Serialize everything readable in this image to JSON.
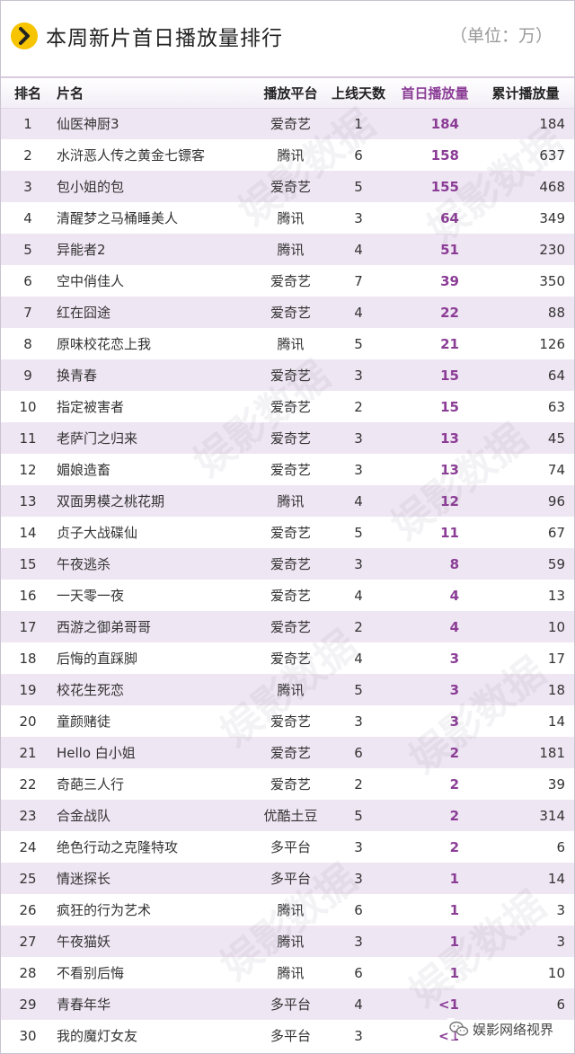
{
  "header": {
    "title": "本周新片首日播放量排行",
    "unit": "（单位：万）",
    "icon": "chevron-right-icon",
    "accent_color": "#f6c400"
  },
  "table": {
    "columns": [
      "排名",
      "片名",
      "播放平台",
      "上线天数",
      "首日播放量",
      "累计播放量"
    ],
    "highlight_color": "#8b3d96",
    "rows": [
      {
        "rank": "1",
        "title": "仙医神厨3",
        "platform": "爱奇艺",
        "days": "1",
        "first_day": "184",
        "total": "184"
      },
      {
        "rank": "2",
        "title": "水浒恶人传之黄金七镖客",
        "platform": "腾讯",
        "days": "6",
        "first_day": "158",
        "total": "637"
      },
      {
        "rank": "3",
        "title": "包小姐的包",
        "platform": "爱奇艺",
        "days": "5",
        "first_day": "155",
        "total": "468"
      },
      {
        "rank": "4",
        "title": "清醒梦之马桶睡美人",
        "platform": "腾讯",
        "days": "3",
        "first_day": "64",
        "total": "349"
      },
      {
        "rank": "5",
        "title": "异能者2",
        "platform": "腾讯",
        "days": "4",
        "first_day": "51",
        "total": "230"
      },
      {
        "rank": "6",
        "title": "空中俏佳人",
        "platform": "爱奇艺",
        "days": "7",
        "first_day": "39",
        "total": "350"
      },
      {
        "rank": "7",
        "title": "红在囧途",
        "platform": "爱奇艺",
        "days": "4",
        "first_day": "22",
        "total": "88"
      },
      {
        "rank": "8",
        "title": "原味校花恋上我",
        "platform": "腾讯",
        "days": "5",
        "first_day": "21",
        "total": "126"
      },
      {
        "rank": "9",
        "title": "换青春",
        "platform": "爱奇艺",
        "days": "3",
        "first_day": "15",
        "total": "64"
      },
      {
        "rank": "10",
        "title": "指定被害者",
        "platform": "爱奇艺",
        "days": "2",
        "first_day": "15",
        "total": "63"
      },
      {
        "rank": "11",
        "title": "老萨门之归来",
        "platform": "爱奇艺",
        "days": "3",
        "first_day": "13",
        "total": "45"
      },
      {
        "rank": "12",
        "title": "媚娘造畜",
        "platform": "爱奇艺",
        "days": "3",
        "first_day": "13",
        "total": "74"
      },
      {
        "rank": "13",
        "title": "双面男模之桃花期",
        "platform": "腾讯",
        "days": "4",
        "first_day": "12",
        "total": "96"
      },
      {
        "rank": "14",
        "title": "贞子大战碟仙",
        "platform": "爱奇艺",
        "days": "5",
        "first_day": "11",
        "total": "67"
      },
      {
        "rank": "15",
        "title": "午夜逃杀",
        "platform": "爱奇艺",
        "days": "3",
        "first_day": "8",
        "total": "59"
      },
      {
        "rank": "16",
        "title": "一天零一夜",
        "platform": "爱奇艺",
        "days": "4",
        "first_day": "4",
        "total": "13"
      },
      {
        "rank": "17",
        "title": "西游之御弟哥哥",
        "platform": "爱奇艺",
        "days": "2",
        "first_day": "4",
        "total": "10"
      },
      {
        "rank": "18",
        "title": "后悔的直踩脚",
        "platform": "爱奇艺",
        "days": "4",
        "first_day": "3",
        "total": "17"
      },
      {
        "rank": "19",
        "title": "校花生死恋",
        "platform": "腾讯",
        "days": "5",
        "first_day": "3",
        "total": "18"
      },
      {
        "rank": "20",
        "title": "童颜赌徒",
        "platform": "爱奇艺",
        "days": "3",
        "first_day": "3",
        "total": "14"
      },
      {
        "rank": "21",
        "title": "Hello 白小姐",
        "platform": "爱奇艺",
        "days": "6",
        "first_day": "2",
        "total": "181"
      },
      {
        "rank": "22",
        "title": "奇葩三人行",
        "platform": "爱奇艺",
        "days": "2",
        "first_day": "2",
        "total": "39"
      },
      {
        "rank": "23",
        "title": "合金战队",
        "platform": "优酷土豆",
        "days": "5",
        "first_day": "2",
        "total": "314"
      },
      {
        "rank": "24",
        "title": "绝色行动之克隆特攻",
        "platform": "多平台",
        "days": "3",
        "first_day": "2",
        "total": "6"
      },
      {
        "rank": "25",
        "title": "情迷探长",
        "platform": "多平台",
        "days": "3",
        "first_day": "1",
        "total": "14"
      },
      {
        "rank": "26",
        "title": "疯狂的行为艺术",
        "platform": "腾讯",
        "days": "6",
        "first_day": "1",
        "total": "3"
      },
      {
        "rank": "27",
        "title": "午夜猫妖",
        "platform": "腾讯",
        "days": "3",
        "first_day": "1",
        "total": "3"
      },
      {
        "rank": "28",
        "title": "不看别后悔",
        "platform": "腾讯",
        "days": "6",
        "first_day": "1",
        "total": "10"
      },
      {
        "rank": "29",
        "title": "青春年华",
        "platform": "多平台",
        "days": "4",
        "first_day": "<1",
        "total": "6"
      },
      {
        "rank": "30",
        "title": "我的魔灯女友",
        "platform": "多平台",
        "days": "3",
        "first_day": "<1",
        "total": ""
      }
    ]
  },
  "watermark": {
    "text": "娱影数据",
    "icon": "yu-logo-watermark"
  },
  "footer": {
    "label": "娱影网络视界",
    "icon": "wechat-icon"
  }
}
